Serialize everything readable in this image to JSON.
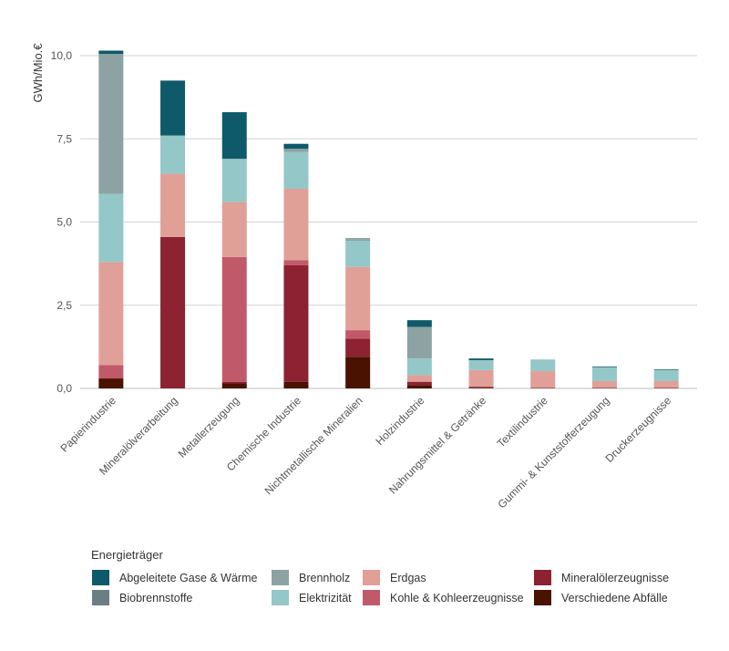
{
  "chart_data": {
    "type": "bar",
    "stacked": true,
    "ylabel": "GWh/Mio.€",
    "xlabel": "",
    "ylim": [
      0,
      10.5
    ],
    "yticks": [
      "0,0",
      "2,5",
      "5,0",
      "7,5",
      "10,0"
    ],
    "ytick_values": [
      0,
      2.5,
      5,
      7.5,
      10
    ],
    "grid": true,
    "legend_title": "Energieträger",
    "legend_position": "bottom",
    "categories": [
      "Papierindustrie",
      "Mineralölverarbeitung",
      "Metallerzeugung",
      "Chemische Industrie",
      "Nichtmetallische Mineralien",
      "Holzindustrie",
      "Nahrungsmittel & Getränke",
      "Textilindustrie",
      "Gummi- & Kunststofferzeugung",
      "Druckerzeugnisse"
    ],
    "series": [
      {
        "name": "Verschiedene Abfälle",
        "color": "#4a1200",
        "values": [
          0.3,
          0.0,
          0.15,
          0.2,
          0.95,
          0.1,
          0.02,
          0.0,
          0.0,
          0.0
        ]
      },
      {
        "name": "Mineralölerzeugnisse",
        "color": "#8c2232",
        "values": [
          0.0,
          4.55,
          0.05,
          3.5,
          0.55,
          0.1,
          0.03,
          0.02,
          0.02,
          0.02
        ]
      },
      {
        "name": "Kohle & Kohleerzeugnisse",
        "color": "#c05a6a",
        "values": [
          0.4,
          0.0,
          3.75,
          0.15,
          0.25,
          0.0,
          0.0,
          0.0,
          0.0,
          0.0
        ]
      },
      {
        "name": "Erdgas",
        "color": "#e0a098",
        "values": [
          3.1,
          1.9,
          1.65,
          2.15,
          1.9,
          0.2,
          0.5,
          0.5,
          0.2,
          0.2
        ]
      },
      {
        "name": "Elektrizität",
        "color": "#94c7c7",
        "values": [
          2.05,
          1.15,
          1.3,
          1.1,
          0.8,
          0.5,
          0.3,
          0.35,
          0.42,
          0.33
        ]
      },
      {
        "name": "Biobrennstoffe",
        "color": "#6a7e84",
        "values": [
          0.0,
          0.0,
          0.0,
          0.0,
          0.02,
          0.0,
          0.0,
          0.0,
          0.0,
          0.0
        ]
      },
      {
        "name": "Brennholz",
        "color": "#8da2a2",
        "values": [
          4.2,
          0.0,
          0.0,
          0.1,
          0.05,
          0.95,
          0.0,
          0.0,
          0.0,
          0.0
        ]
      },
      {
        "name": "Abgeleitete Gase & Wärme",
        "color": "#0e5a6a",
        "values": [
          0.1,
          1.65,
          1.4,
          0.15,
          0.0,
          0.2,
          0.05,
          0.0,
          0.02,
          0.02
        ]
      }
    ],
    "legend_order": [
      "Abgeleitete Gase & Wärme",
      "Biobrennstoffe",
      "Brennholz",
      "Elektrizität",
      "Erdgas",
      "Kohle & Kohleerzeugnisse",
      "Mineralölerzeugnisse",
      "Verschiedene Abfälle"
    ]
  }
}
